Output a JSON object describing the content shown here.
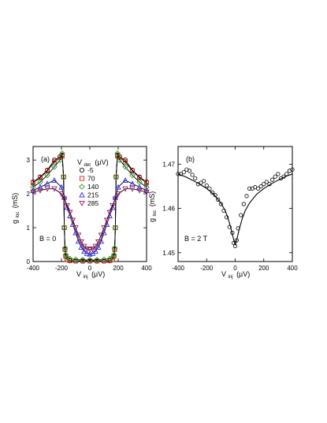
{
  "chart_data": [
    {
      "type": "line",
      "panel_label": "(a)",
      "xlabel_main": "V",
      "xlabel_sub": "inj",
      "xlabel_unit": "(µV)",
      "ylabel_main": "g",
      "ylabel_sub": "loc",
      "ylabel_unit": "(mS)",
      "xlim": [
        -400,
        400
      ],
      "ylim": [
        0,
        3.4
      ],
      "xticks": [
        -400,
        -200,
        0,
        200,
        400
      ],
      "yticks": [
        0,
        1,
        2,
        3
      ],
      "legend_title_main": "V",
      "legend_title_sub": "det",
      "legend_title_unit": "(µV)",
      "annotation": "B = 0",
      "series": [
        {
          "name": "-5",
          "marker": "circle",
          "color": "#000000",
          "x": [
            -400,
            -350,
            -300,
            -250,
            -210,
            -195,
            -185,
            -180,
            -175,
            -170,
            -160,
            -140,
            -100,
            -50,
            0,
            50,
            100,
            140,
            160,
            170,
            175,
            180,
            185,
            195,
            210,
            250,
            300,
            350,
            400
          ],
          "values": [
            2.35,
            2.5,
            2.7,
            3.0,
            3.1,
            3.15,
            2.5,
            1.0,
            0.35,
            0.15,
            0.05,
            0.02,
            0.01,
            0.01,
            0.01,
            0.01,
            0.01,
            0.02,
            0.05,
            0.15,
            0.35,
            1.0,
            2.5,
            3.15,
            3.1,
            3.0,
            2.7,
            2.5,
            2.35
          ]
        },
        {
          "name": "70",
          "marker": "square",
          "color": "#e8251f",
          "x": [
            -400,
            -350,
            -300,
            -250,
            -210,
            -195,
            -185,
            -180,
            -175,
            -170,
            -160,
            -140,
            -100,
            -50,
            0,
            50,
            100,
            140,
            160,
            170,
            175,
            180,
            185,
            195,
            210,
            250,
            300,
            350,
            400
          ],
          "values": [
            2.33,
            2.48,
            2.68,
            2.95,
            3.08,
            3.12,
            2.5,
            1.0,
            0.36,
            0.16,
            0.06,
            0.03,
            0.02,
            0.02,
            0.02,
            0.02,
            0.02,
            0.03,
            0.06,
            0.16,
            0.36,
            1.0,
            2.5,
            3.12,
            3.08,
            2.95,
            2.68,
            2.48,
            2.33
          ]
        },
        {
          "name": "140",
          "marker": "diamond",
          "color": "#2aa52a",
          "x": [
            -400,
            -350,
            -300,
            -250,
            -210,
            -195,
            -185,
            -180,
            -175,
            -170,
            -160,
            -140,
            -100,
            -50,
            0,
            50,
            100,
            140,
            160,
            170,
            175,
            180,
            185,
            195,
            210,
            250,
            300,
            350,
            400
          ],
          "values": [
            2.2,
            2.35,
            2.55,
            2.8,
            3.0,
            3.2,
            2.5,
            1.0,
            0.4,
            0.2,
            0.12,
            0.08,
            0.06,
            0.05,
            0.05,
            0.05,
            0.06,
            0.08,
            0.12,
            0.2,
            0.4,
            1.0,
            2.5,
            3.2,
            3.0,
            2.8,
            2.55,
            2.35,
            2.2
          ]
        },
        {
          "name": "215",
          "marker": "triangle-up",
          "color": "#2f2ff0",
          "x": [
            -400,
            -350,
            -300,
            -250,
            -200,
            -180,
            -160,
            -140,
            -120,
            -100,
            -80,
            -60,
            -40,
            -20,
            0,
            20,
            40,
            60,
            80,
            100,
            120,
            140,
            160,
            180,
            200,
            250,
            300,
            350,
            400
          ],
          "values": [
            2.1,
            2.2,
            2.3,
            2.4,
            2.2,
            1.9,
            1.6,
            1.35,
            1.1,
            0.85,
            0.6,
            0.42,
            0.3,
            0.24,
            0.22,
            0.24,
            0.3,
            0.42,
            0.6,
            0.85,
            1.1,
            1.35,
            1.6,
            1.9,
            2.2,
            2.4,
            2.3,
            2.2,
            2.1
          ]
        },
        {
          "name": "285",
          "marker": "triangle-down",
          "color": "#a01868",
          "x": [
            -400,
            -350,
            -300,
            -250,
            -200,
            -180,
            -160,
            -140,
            -120,
            -100,
            -80,
            -60,
            -40,
            -20,
            0,
            20,
            40,
            60,
            80,
            100,
            120,
            140,
            160,
            180,
            200,
            250,
            300,
            350,
            400
          ],
          "values": [
            2.05,
            2.1,
            2.15,
            2.15,
            2.0,
            1.85,
            1.65,
            1.45,
            1.22,
            1.0,
            0.78,
            0.58,
            0.45,
            0.37,
            0.35,
            0.37,
            0.45,
            0.58,
            0.78,
            1.0,
            1.22,
            1.45,
            1.65,
            1.85,
            2.0,
            2.15,
            2.15,
            2.1,
            2.05
          ]
        }
      ]
    },
    {
      "type": "scatter",
      "panel_label": "(b)",
      "xlabel_main": "V",
      "xlabel_sub": "inj",
      "xlabel_unit": "(µV)",
      "ylabel_main": "g",
      "ylabel_sub": "loc",
      "ylabel_unit": "(mS)",
      "xlim": [
        -400,
        400
      ],
      "ylim": [
        1.448,
        1.474
      ],
      "xticks": [
        -400,
        -200,
        0,
        200,
        400
      ],
      "yticks": [
        1.45,
        1.46,
        1.47
      ],
      "ytick_labels": [
        "1.45",
        "1.46",
        "1.47"
      ],
      "annotation": "B = 2 T",
      "points_x": [
        -400,
        -380,
        -360,
        -340,
        -320,
        -300,
        -280,
        -260,
        -240,
        -220,
        -200,
        -180,
        -160,
        -140,
        -120,
        -100,
        -80,
        -60,
        -40,
        -20,
        -10,
        0,
        10,
        20,
        40,
        60,
        80,
        100,
        120,
        140,
        160,
        180,
        200,
        220,
        240,
        260,
        280,
        300,
        320,
        340,
        360,
        380,
        400
      ],
      "points_y": [
        1.4678,
        1.4678,
        1.4682,
        1.4688,
        1.4685,
        1.4676,
        1.4668,
        1.4655,
        1.4658,
        1.4662,
        1.4652,
        1.4645,
        1.4636,
        1.463,
        1.462,
        1.461,
        1.4595,
        1.458,
        1.4558,
        1.4545,
        1.4522,
        1.4515,
        1.4528,
        1.4555,
        1.4585,
        1.461,
        1.4628,
        1.4645,
        1.4645,
        1.4648,
        1.4645,
        1.465,
        1.4655,
        1.466,
        1.4655,
        1.4665,
        1.4672,
        1.4678,
        1.4668,
        1.4672,
        1.4678,
        1.4685,
        1.4688
      ],
      "fit_x": [
        -400,
        -350,
        -300,
        -250,
        -200,
        -150,
        -100,
        -70,
        -50,
        -30,
        -15,
        -5,
        0,
        5,
        15,
        30,
        50,
        70,
        100,
        150,
        200,
        250,
        300,
        350,
        400
      ],
      "fit_y": [
        1.4678,
        1.4672,
        1.4664,
        1.4655,
        1.4645,
        1.4632,
        1.4612,
        1.4595,
        1.4578,
        1.4555,
        1.4535,
        1.4522,
        1.4518,
        1.4522,
        1.4535,
        1.4555,
        1.4578,
        1.4595,
        1.4612,
        1.4632,
        1.4645,
        1.4655,
        1.4664,
        1.4672,
        1.4678
      ]
    }
  ]
}
